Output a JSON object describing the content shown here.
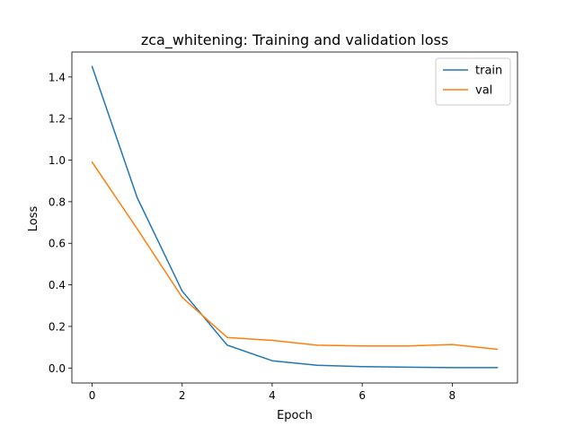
{
  "chart_data": {
    "type": "line",
    "title": "zca_whitening: Training and validation loss",
    "xlabel": "Epoch",
    "ylabel": "Loss",
    "xlim": [
      -0.45,
      9.45
    ],
    "ylim": [
      -0.072,
      1.52
    ],
    "xticks": [
      0,
      2,
      4,
      6,
      8
    ],
    "yticks": [
      0.0,
      0.2,
      0.4,
      0.6,
      0.8,
      1.0,
      1.2,
      1.4
    ],
    "xtick_labels": [
      "0",
      "2",
      "4",
      "6",
      "8"
    ],
    "ytick_labels": [
      "0.0",
      "0.2",
      "0.4",
      "0.6",
      "0.8",
      "1.0",
      "1.2",
      "1.4"
    ],
    "grid": false,
    "legend_position": "top-right",
    "x": [
      0,
      1,
      2,
      3,
      4,
      5,
      6,
      7,
      8,
      9
    ],
    "series": [
      {
        "name": "train",
        "color": "#1f77b4",
        "values": [
          1.45,
          0.82,
          0.37,
          0.11,
          0.035,
          0.013,
          0.007,
          0.004,
          0.002,
          0.002
        ]
      },
      {
        "name": "val",
        "color": "#ff7f0e",
        "values": [
          0.99,
          0.67,
          0.34,
          0.147,
          0.133,
          0.11,
          0.106,
          0.106,
          0.113,
          0.09
        ]
      }
    ]
  }
}
